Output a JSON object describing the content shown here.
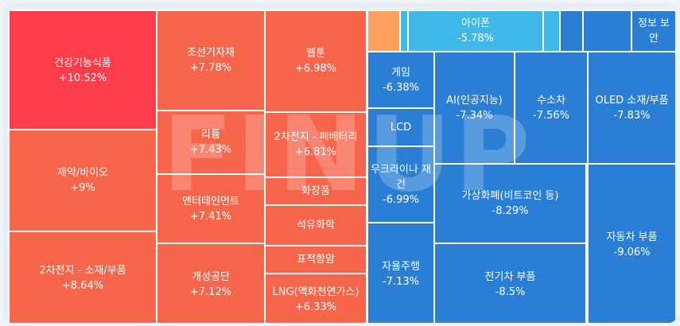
{
  "watermark": "FINUP",
  "chart_data": {
    "type": "treemap",
    "unit": "%",
    "colors": {
      "up_strong": "#ff3d4a",
      "up": "#f7654b",
      "down": "#2a7fd5",
      "down_light": "#3fb8e8",
      "orange": "#ffa05c"
    },
    "items": [
      {
        "name": "건강기능식품",
        "value": "+10.52%",
        "change": 10.52,
        "color": "up_strong"
      },
      {
        "name": "제약/바이오",
        "value": "+9%",
        "change": 9.0,
        "color": "up"
      },
      {
        "name": "2차전지 - 소재/부품",
        "value": "+8.64%",
        "change": 8.64,
        "color": "up"
      },
      {
        "name": "조선기자재",
        "value": "+7.78%",
        "change": 7.78,
        "color": "up"
      },
      {
        "name": "리튬",
        "value": "+7.43%",
        "change": 7.43,
        "color": "up"
      },
      {
        "name": "엔터테인먼트",
        "value": "+7.41%",
        "change": 7.41,
        "color": "up"
      },
      {
        "name": "개성공단",
        "value": "+7.12%",
        "change": 7.12,
        "color": "up"
      },
      {
        "name": "웹툰",
        "value": "+6.98%",
        "change": 6.98,
        "color": "up"
      },
      {
        "name": "2차전지 - 폐배터리",
        "value": "+6.81%",
        "change": 6.81,
        "color": "up"
      },
      {
        "name": "화장품",
        "value": "",
        "change": null,
        "color": "up"
      },
      {
        "name": "석유화학",
        "value": "",
        "change": null,
        "color": "up"
      },
      {
        "name": "표적항암",
        "value": "",
        "change": null,
        "color": "up"
      },
      {
        "name": "LNG(액화천연가스)",
        "value": "+6.33%",
        "change": 6.33,
        "color": "up"
      },
      {
        "name": "",
        "value": "",
        "change": null,
        "color": "orange"
      },
      {
        "name": "",
        "value": "",
        "change": null,
        "color": "down_light"
      },
      {
        "name": "아이폰",
        "value": "-5.78%",
        "change": -5.78,
        "color": "down_light"
      },
      {
        "name": "",
        "value": "",
        "change": null,
        "color": "down_light"
      },
      {
        "name": "",
        "value": "",
        "change": null,
        "color": "down"
      },
      {
        "name": "",
        "value": "",
        "change": null,
        "color": "down"
      },
      {
        "name": "정보 보안",
        "value": "",
        "change": null,
        "color": "down"
      },
      {
        "name": "게임",
        "value": "-6.38%",
        "change": -6.38,
        "color": "down"
      },
      {
        "name": "LCD",
        "value": "",
        "change": null,
        "color": "down"
      },
      {
        "name": "우크라이나 재건",
        "value": "-6.99%",
        "change": -6.99,
        "color": "down"
      },
      {
        "name": "자율주행",
        "value": "-7.13%",
        "change": -7.13,
        "color": "down"
      },
      {
        "name": "AI(인공지능)",
        "value": "-7.34%",
        "change": -7.34,
        "color": "down"
      },
      {
        "name": "수소차",
        "value": "-7.56%",
        "change": -7.56,
        "color": "down"
      },
      {
        "name": "OLED 소재/부품",
        "value": "-7.83%",
        "change": -7.83,
        "color": "down"
      },
      {
        "name": "가상화폐(비트코인 등)",
        "value": "-8.29%",
        "change": -8.29,
        "color": "down"
      },
      {
        "name": "전기차 부품",
        "value": "-8.5%",
        "change": -8.5,
        "color": "down"
      },
      {
        "name": "자동차 부품",
        "value": "-9.06%",
        "change": -9.06,
        "color": "down"
      }
    ]
  }
}
